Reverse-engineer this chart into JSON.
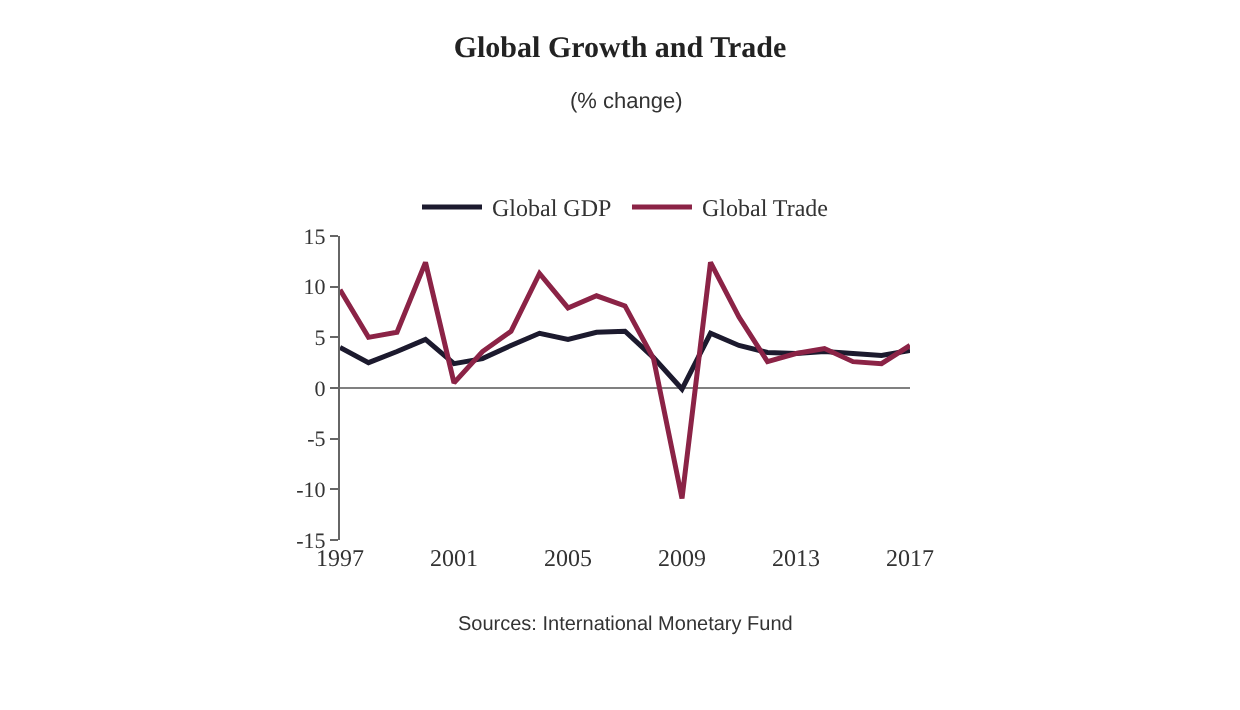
{
  "chart_data": {
    "type": "line",
    "title": "Global Growth and Trade",
    "subtitle": "(% change)",
    "x": [
      1997,
      1998,
      1999,
      2000,
      2001,
      2002,
      2003,
      2004,
      2005,
      2006,
      2007,
      2008,
      2009,
      2010,
      2011,
      2012,
      2013,
      2014,
      2015,
      2016,
      2017
    ],
    "series": [
      {
        "name": "Global GDP",
        "color": "#1c1a2e",
        "values": [
          4.0,
          2.5,
          3.6,
          4.8,
          2.4,
          2.9,
          4.2,
          5.4,
          4.8,
          5.5,
          5.6,
          3.0,
          -0.1,
          5.4,
          4.2,
          3.5,
          3.4,
          3.6,
          3.4,
          3.2,
          3.7
        ]
      },
      {
        "name": "Global Trade",
        "color": "#8b2346",
        "values": [
          9.7,
          5.0,
          5.5,
          12.4,
          0.5,
          3.6,
          5.6,
          11.3,
          7.9,
          9.1,
          8.1,
          2.9,
          -10.9,
          12.4,
          7.0,
          2.6,
          3.4,
          3.9,
          2.6,
          2.4,
          4.2
        ]
      }
    ],
    "xlim": [
      1997,
      2017
    ],
    "xticks": [
      1997,
      2001,
      2005,
      2009,
      2013,
      2017
    ],
    "ylim": [
      -15,
      15
    ],
    "yticks": [
      -15,
      -10,
      -5,
      0,
      5,
      10,
      15
    ],
    "ref_lines": [
      {
        "axis": "y",
        "value": 0,
        "color": "#808080"
      }
    ],
    "annotations": [
      "Sources: International Monetary Fund"
    ],
    "grid": false,
    "legend": "top",
    "marker": "none",
    "line_style": "solid"
  }
}
